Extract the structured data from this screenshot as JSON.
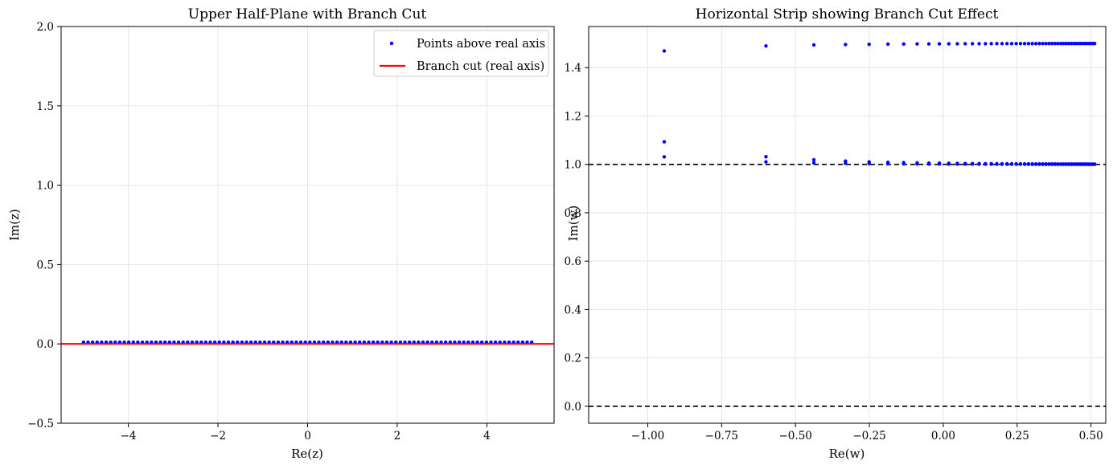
{
  "colors": {
    "points": "#0000ff",
    "branch_cut": "#ff0000",
    "dashed": "#000000",
    "grid": "#e6e6e6"
  },
  "chart_data": [
    {
      "type": "scatter",
      "title": "Upper Half-Plane with Branch Cut",
      "xlabel": "Re(z)",
      "ylabel": "Im(z)",
      "xlim": [
        -5.5,
        5.5
      ],
      "ylim": [
        -0.5,
        2.0
      ],
      "xticks": [
        -4,
        -2,
        0,
        2,
        4
      ],
      "xtick_labels": [
        "−4",
        "−2",
        "0",
        "2",
        "4"
      ],
      "yticks": [
        -0.5,
        0.0,
        0.5,
        1.0,
        1.5,
        2.0
      ],
      "ytick_labels": [
        "−0.5",
        "0.0",
        "0.5",
        "1.0",
        "1.5",
        "2.0"
      ],
      "grid": true,
      "legend_position": "top-right",
      "series": [
        {
          "name": "Points above real axis",
          "kind": "points",
          "x_range": [
            -5.0,
            5.0
          ],
          "n_points": 100,
          "y": 0.01
        },
        {
          "name": "Branch cut (real axis)",
          "kind": "hline",
          "y": 0.0
        }
      ]
    },
    {
      "type": "scatter",
      "title": "Horizontal Strip showing Branch Cut Effect",
      "xlabel": "Re(w)",
      "ylabel": "Im(w)",
      "xlim": [
        -1.2,
        0.55
      ],
      "ylim": [
        -0.07,
        1.57
      ],
      "xticks": [
        -1.0,
        -0.75,
        -0.5,
        -0.25,
        0.0,
        0.25,
        0.5
      ],
      "xtick_labels": [
        "−1.00",
        "−0.75",
        "−0.50",
        "−0.25",
        "0.00",
        "0.25",
        "0.50"
      ],
      "yticks": [
        0.0,
        0.2,
        0.4,
        0.6,
        0.8,
        1.0,
        1.2,
        1.4
      ],
      "ytick_labels": [
        "0.0",
        "0.2",
        "0.4",
        "0.6",
        "0.8",
        "1.0",
        "1.2",
        "1.4"
      ],
      "grid": true,
      "dashed_lines_y": [
        0.0,
        1.0
      ],
      "series": [
        {
          "name": "",
          "kind": "log-map-upper",
          "x_range": [
            -5.0,
            5.0
          ],
          "n_points": 100,
          "eps": 0.01,
          "shift": 0.5
        },
        {
          "name": "",
          "kind": "log-map-lower",
          "x_range": [
            -5.0,
            5.0
          ],
          "n_points": 100,
          "eps": 0.01,
          "shift": 0.5
        }
      ]
    }
  ]
}
